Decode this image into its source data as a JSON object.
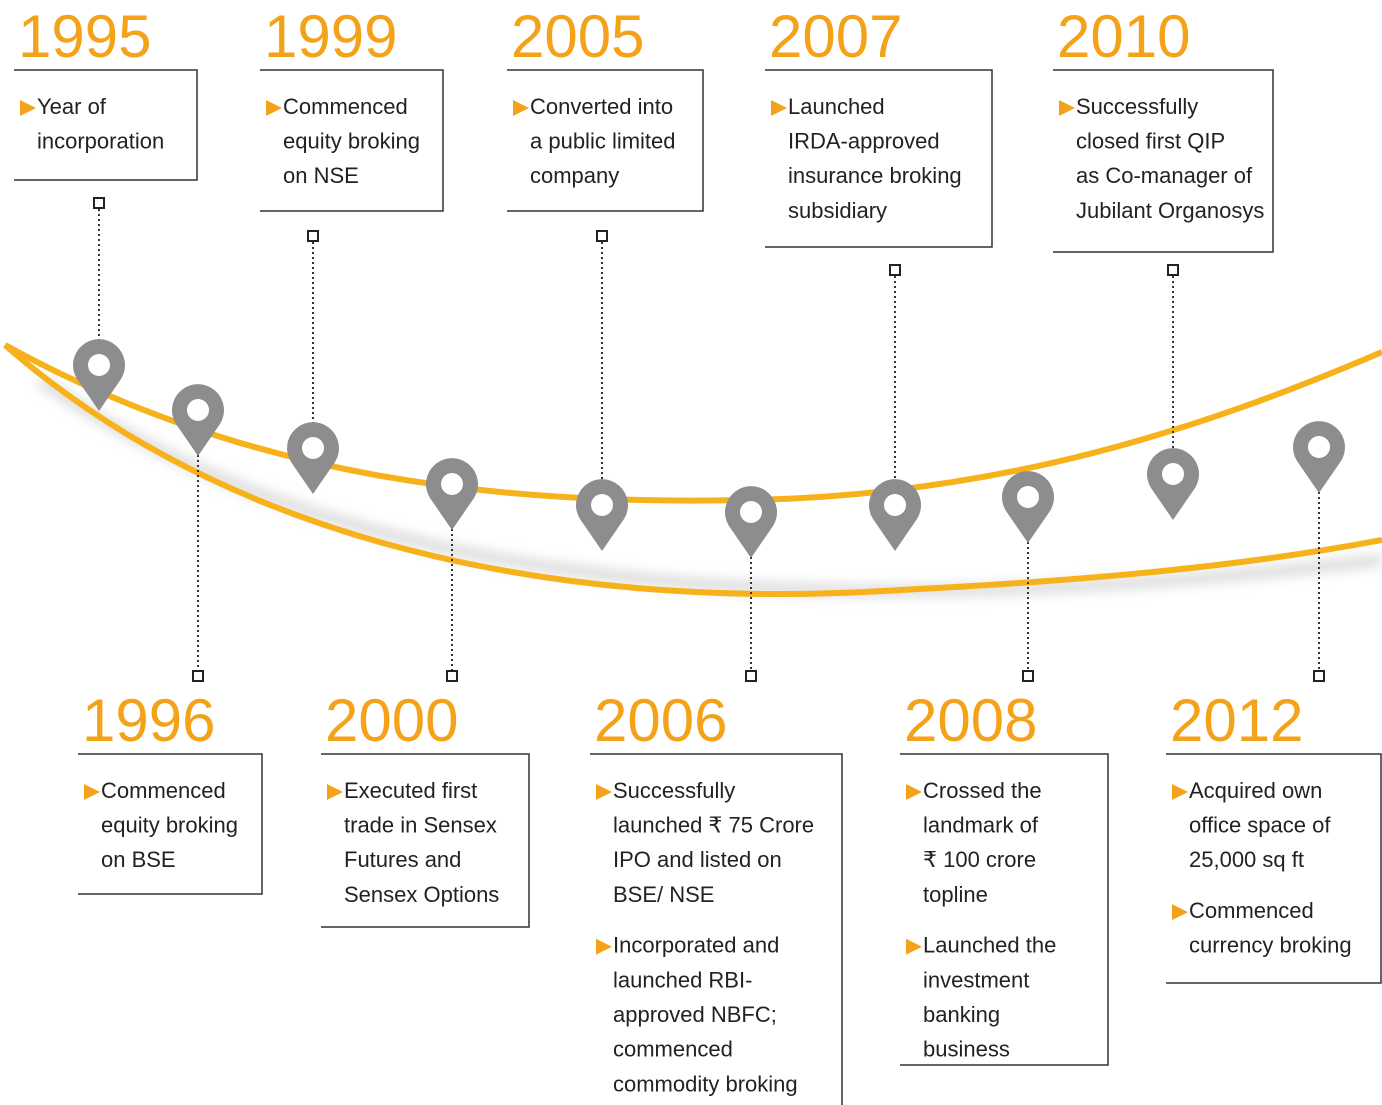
{
  "events": [
    {
      "year": "1995",
      "items": [
        [
          "Year of",
          "incorporation"
        ]
      ]
    },
    {
      "year": "1996",
      "items": [
        [
          "Commenced",
          "equity broking",
          "on BSE"
        ]
      ]
    },
    {
      "year": "1999",
      "items": [
        [
          "Commenced",
          "equity broking",
          "on NSE"
        ]
      ]
    },
    {
      "year": "2000",
      "items": [
        [
          "Executed first",
          "trade in Sensex",
          "Futures and",
          "Sensex Options"
        ]
      ]
    },
    {
      "year": "2005",
      "items": [
        [
          "Converted into",
          "a public limited",
          "company"
        ]
      ]
    },
    {
      "year": "2006",
      "items": [
        [
          "Successfully",
          "launched ₹ 75 Crore",
          "IPO and listed on",
          "BSE/ NSE"
        ],
        [
          "Incorporated and",
          "launched RBI-",
          "approved NBFC;",
          "commenced",
          "commodity broking"
        ]
      ]
    },
    {
      "year": "2007",
      "items": [
        [
          "Launched",
          "IRDA-approved",
          "insurance broking",
          "subsidiary"
        ]
      ]
    },
    {
      "year": "2008",
      "items": [
        [
          "Crossed the",
          "landmark of",
          "₹ 100 crore",
          "topline"
        ],
        [
          "Launched the",
          "investment",
          "banking",
          "business"
        ]
      ]
    },
    {
      "year": "2010",
      "items": [
        [
          "Successfully",
          "closed first QIP",
          "as Co-manager of",
          "Jubilant Organosys"
        ]
      ]
    },
    {
      "year": "2012",
      "items": [
        [
          "Acquired own",
          "office space of",
          "25,000 sq ft"
        ],
        [
          "Commenced",
          "currency broking"
        ]
      ]
    }
  ]
}
